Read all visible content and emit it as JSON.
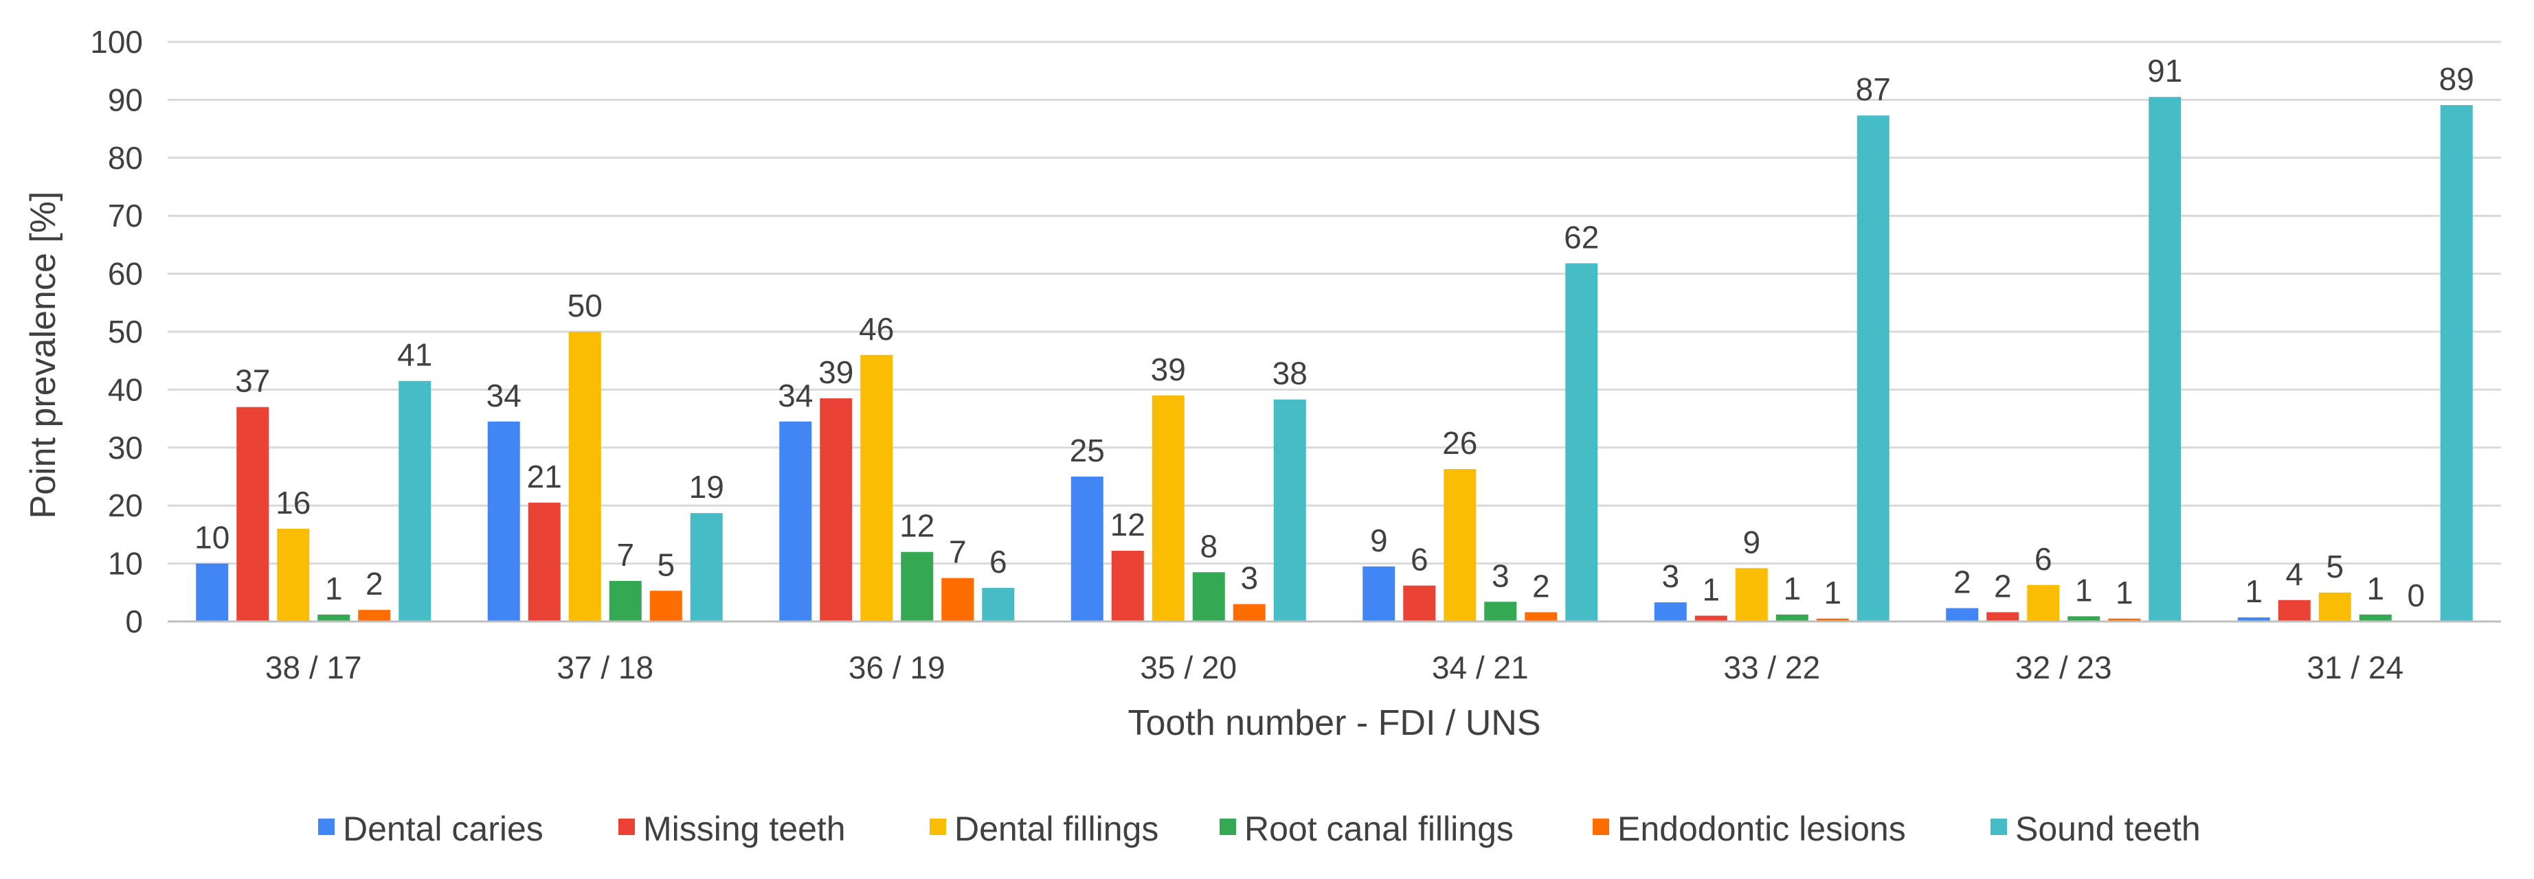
{
  "chart_data": {
    "type": "bar",
    "title": "",
    "xlabel": "Tooth number - FDI / UNS",
    "ylabel": "Point prevalence [%]",
    "ylim": [
      0,
      100
    ],
    "yticks": [
      "0",
      "10",
      "20",
      "30",
      "40",
      "50",
      "60",
      "70",
      "80",
      "90",
      "100"
    ],
    "grid": true,
    "legend_position": "bottom",
    "categories": [
      "38 / 17",
      "37 / 18",
      "36 / 19",
      "35 / 20",
      "34 / 21",
      "33 / 22",
      "32 / 23",
      "31 / 24"
    ],
    "series": [
      {
        "name": "Dental caries",
        "color": "#4285F4",
        "values": [
          10,
          34.5,
          34.5,
          25,
          9.5,
          3.3,
          2.3,
          0.7
        ],
        "labels": [
          "10",
          "34",
          "34",
          "25",
          "9",
          "3",
          "2",
          "1"
        ]
      },
      {
        "name": "Missing teeth",
        "color": "#EA4335",
        "values": [
          37,
          20.5,
          38.5,
          12.2,
          6.2,
          1.0,
          1.6,
          3.7
        ],
        "labels": [
          "37",
          "21",
          "39",
          "12",
          "6",
          "1",
          "2",
          "4"
        ]
      },
      {
        "name": "Dental fillings",
        "color": "#FBBC04",
        "values": [
          16,
          50,
          46,
          39,
          26.3,
          9.2,
          6.3,
          5.0
        ],
        "labels": [
          "16",
          "50",
          "46",
          "39",
          "26",
          "9",
          "6",
          "5"
        ]
      },
      {
        "name": "Root canal fillings",
        "color": "#34A853",
        "values": [
          1.2,
          7,
          12,
          8.5,
          3.4,
          1.2,
          0.9,
          1.2
        ],
        "labels": [
          "1",
          "7",
          "12",
          "8",
          "3",
          "1",
          "1",
          "1"
        ]
      },
      {
        "name": "Endodontic lesions",
        "color": "#FF6D01",
        "values": [
          2,
          5.3,
          7.5,
          3,
          1.6,
          0.5,
          0.5,
          0
        ],
        "labels": [
          "2",
          "5",
          "7",
          "3",
          "2",
          "1",
          "1",
          "0"
        ]
      },
      {
        "name": "Sound teeth",
        "color": "#46BDC6",
        "values": [
          41.5,
          18.7,
          5.8,
          38.3,
          61.8,
          87.3,
          90.5,
          89.1
        ],
        "labels": [
          "41",
          "19",
          "6",
          "38",
          "62",
          "87",
          "91",
          "89"
        ]
      }
    ]
  }
}
